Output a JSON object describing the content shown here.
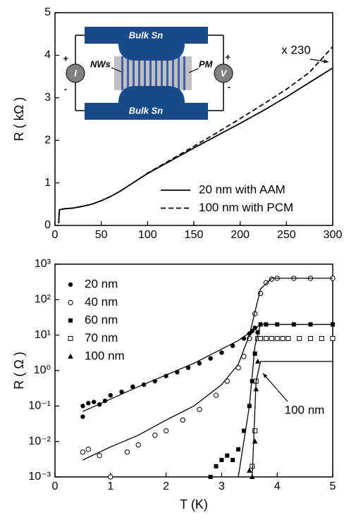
{
  "chart_data": [
    {
      "type": "line",
      "ylabel": "R ( kΩ )",
      "xlim": [
        0,
        300
      ],
      "xticks": [
        0,
        50,
        100,
        150,
        200,
        250,
        300
      ],
      "ylim": [
        0,
        5
      ],
      "yticks": [
        0,
        1,
        2,
        3,
        4,
        5
      ],
      "legend": "lower right",
      "annotation": "x 230",
      "series": [
        {
          "name": "20 nm with AAM",
          "color": "#000000",
          "style": "solid",
          "x": [
            4,
            4.5,
            5,
            10,
            20,
            30,
            40,
            50,
            60,
            70,
            80,
            90,
            100,
            125,
            150,
            175,
            200,
            225,
            250,
            275,
            300
          ],
          "values": [
            0.05,
            0.3,
            0.37,
            0.39,
            0.41,
            0.45,
            0.5,
            0.58,
            0.68,
            0.8,
            0.94,
            1.08,
            1.22,
            1.52,
            1.82,
            2.11,
            2.4,
            2.7,
            3.02,
            3.36,
            3.7
          ]
        },
        {
          "name": "100 nm with PCM",
          "color": "#000000",
          "style": "dashed",
          "x": [
            4,
            4.5,
            5,
            10,
            20,
            30,
            40,
            50,
            60,
            70,
            80,
            90,
            100,
            125,
            150,
            175,
            200,
            225,
            250,
            275,
            300
          ],
          "values": [
            0.05,
            0.3,
            0.37,
            0.39,
            0.41,
            0.45,
            0.5,
            0.58,
            0.68,
            0.8,
            0.94,
            1.08,
            1.23,
            1.54,
            1.86,
            2.18,
            2.51,
            2.85,
            3.2,
            3.6,
            4.2
          ]
        }
      ],
      "inset": {
        "top": "Bulk Sn",
        "bottom": "Bulk Sn",
        "nws": "NWs",
        "pm": "PM",
        "current": "I",
        "voltage": "V",
        "plus": "+",
        "minus": "-"
      }
    },
    {
      "type": "scatter",
      "xlabel": "T (K)",
      "ylabel": "R ( Ω )",
      "log_y": true,
      "xlim": [
        0,
        5
      ],
      "xticks": [
        0,
        1,
        2,
        3,
        4,
        5
      ],
      "ylim": [
        0.001,
        1000
      ],
      "yticks": [
        {
          "value": 0.001,
          "label": "10⁻³"
        },
        {
          "value": 0.01,
          "label": "10⁻²"
        },
        {
          "value": 0.1,
          "label": "10⁻¹"
        },
        {
          "value": 1,
          "label": "10⁰"
        },
        {
          "value": 10,
          "label": "10¹"
        },
        {
          "value": 100,
          "label": "10²"
        },
        {
          "value": 1000,
          "label": "10³"
        }
      ],
      "legend": "upper left",
      "annotation": "100 nm",
      "series": [
        {
          "name": "20 nm",
          "color": "#000000",
          "marker": "filled-circle",
          "x": [
            0.5,
            0.5,
            0.6,
            0.7,
            0.8,
            0.9,
            1.0,
            1.2,
            1.4,
            1.6,
            1.8,
            2.0,
            2.2,
            2.4,
            2.6,
            2.8,
            3.0,
            3.2,
            3.4,
            3.5,
            3.55,
            3.6
          ],
          "values": [
            0.1,
            0.05,
            0.12,
            0.13,
            0.11,
            0.14,
            0.2,
            0.25,
            0.35,
            0.4,
            0.5,
            0.7,
            0.9,
            1.2,
            1.6,
            2.2,
            3.2,
            5,
            8,
            11,
            13,
            16
          ]
        },
        {
          "name": "40 nm",
          "color": "#000000",
          "marker": "open-circle",
          "x": [
            0.5,
            0.6,
            0.8,
            1.0,
            1.3,
            1.5,
            1.8,
            2.0,
            2.3,
            2.6,
            2.9,
            3.1,
            3.3,
            3.4,
            3.5,
            3.6,
            3.7,
            3.8,
            3.9,
            4.0,
            4.3,
            4.6,
            5.0
          ],
          "values": [
            0.005,
            0.006,
            0.004,
            0.001,
            0.005,
            0.008,
            0.015,
            0.02,
            0.04,
            0.08,
            0.2,
            0.5,
            1.2,
            2.5,
            8,
            40,
            150,
            300,
            380,
            400,
            400,
            400,
            400
          ]
        },
        {
          "name": "60 nm",
          "color": "#000000",
          "marker": "filled-square",
          "x": [
            2.8,
            2.9,
            3.0,
            3.1,
            3.2,
            3.3,
            3.4,
            3.5,
            3.55,
            3.6,
            3.65,
            3.7,
            3.8,
            4.0,
            4.3,
            4.6,
            5.0
          ],
          "values": [
            0.001,
            0.002,
            0.003,
            0.004,
            0.003,
            0.006,
            0.02,
            0.1,
            0.5,
            3,
            12,
            20,
            20,
            20,
            20,
            20,
            20
          ]
        },
        {
          "name": "70 nm",
          "color": "#000000",
          "marker": "open-square",
          "x": [
            3.55,
            3.6,
            3.62,
            3.65,
            3.7,
            3.8,
            3.9,
            4.0,
            4.1,
            4.2,
            4.4,
            4.6,
            4.8,
            5.0
          ],
          "values": [
            0.002,
            0.02,
            0.5,
            8,
            8,
            8,
            8,
            8,
            8,
            8,
            8,
            8,
            8,
            8
          ]
        },
        {
          "name": "100 nm",
          "color": "#000000",
          "marker": "filled-triangle",
          "x": [
            3.5,
            3.55,
            3.6,
            3.62,
            3.65
          ],
          "values": [
            0.0015,
            0.001,
            0.01,
            0.3,
            1.8
          ]
        }
      ],
      "fits": [
        {
          "x": [
            0.5,
            1.5,
            2.5,
            3.3,
            3.6,
            3.7,
            5.0
          ],
          "values": [
            0.07,
            0.35,
            1.6,
            7,
            15,
            20,
            20
          ]
        },
        {
          "x": [
            0.5,
            1.0,
            1.5,
            2.0,
            2.5,
            3.0,
            3.3,
            3.5,
            3.7,
            3.9,
            4.0,
            5.0
          ],
          "values": [
            0.003,
            0.007,
            0.015,
            0.04,
            0.1,
            0.4,
            1.5,
            10,
            200,
            400,
            400,
            400
          ]
        },
        {
          "x": [
            3.3,
            3.5,
            3.6,
            3.7,
            5.0
          ],
          "values": [
            0.001,
            0.1,
            5,
            20,
            20
          ]
        },
        {
          "x": [
            3.55,
            3.62,
            3.7,
            5.0
          ],
          "values": [
            0.001,
            0.5,
            1.8,
            1.8
          ]
        }
      ]
    }
  ]
}
